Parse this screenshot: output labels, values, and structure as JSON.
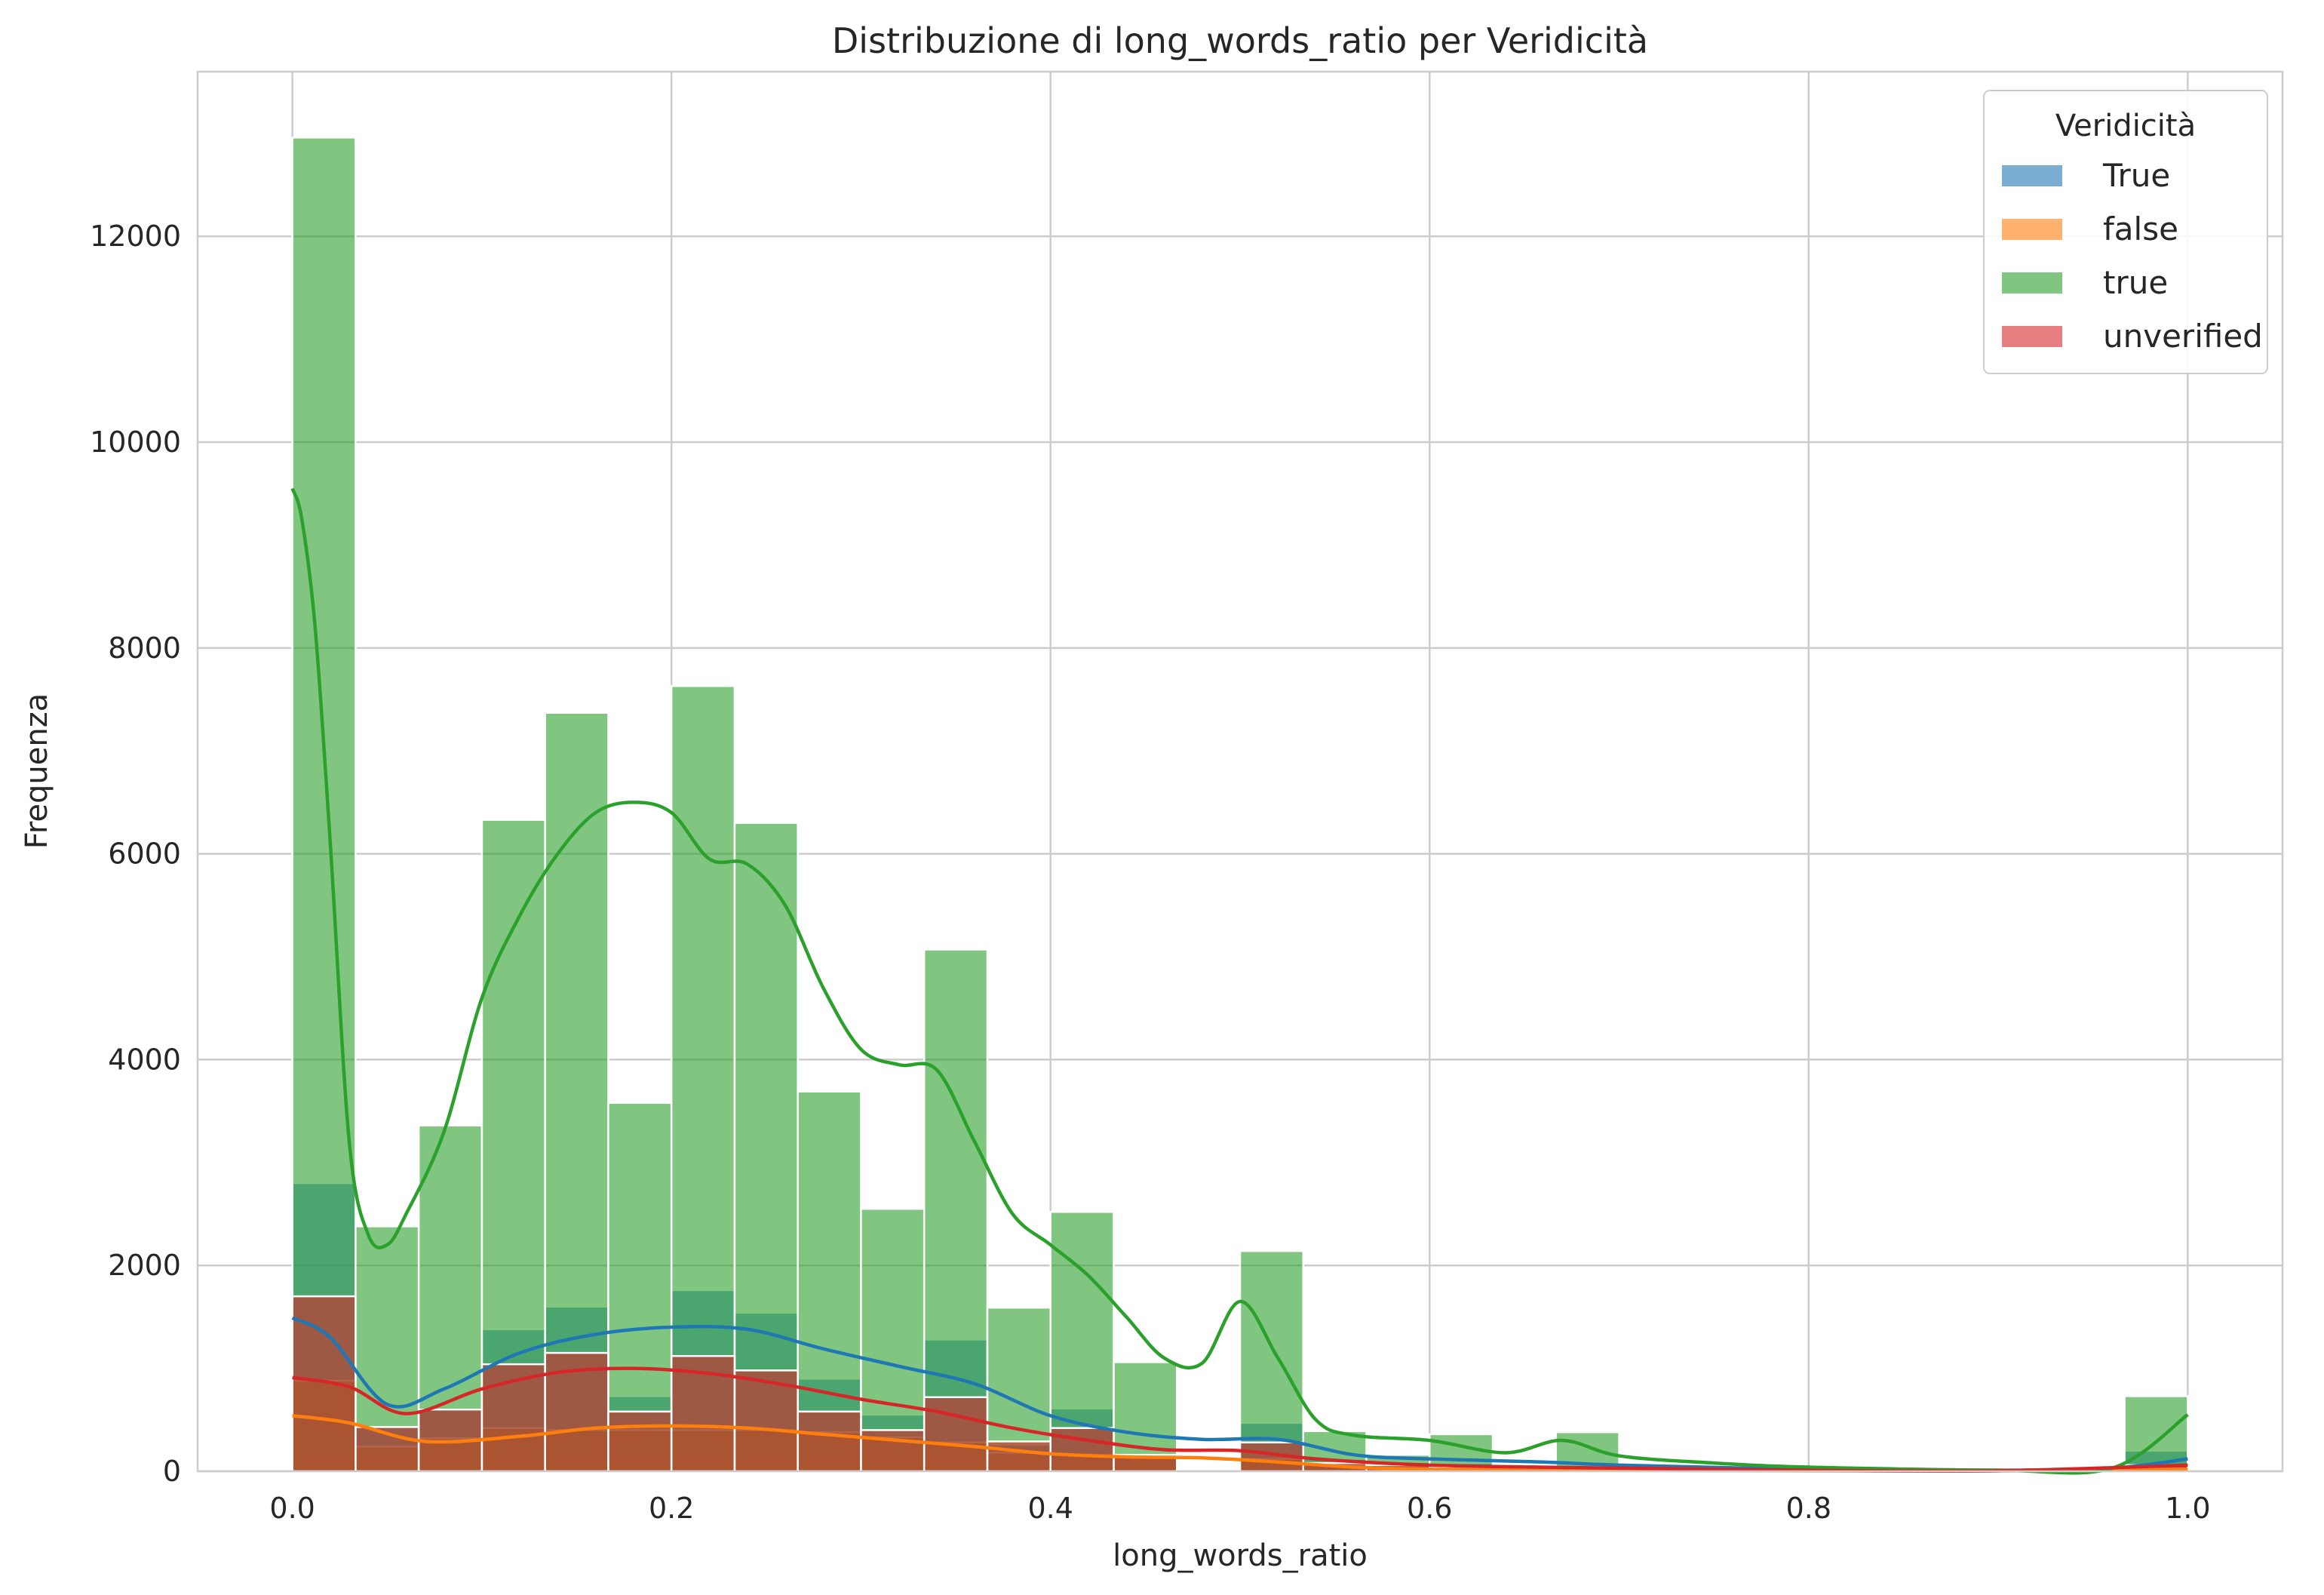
{
  "chart_data": {
    "type": "histogram",
    "title": "Distribuzione di long_words_ratio per Veridicità",
    "xlabel": "long_words_ratio",
    "ylabel": "Frequenza",
    "xlim": [
      -0.05,
      1.05
    ],
    "ylim": [
      0,
      13600
    ],
    "xticks": [
      0.0,
      0.2,
      0.4,
      0.6,
      0.8,
      1.0
    ],
    "xtick_labels": [
      "0.0",
      "0.2",
      "0.4",
      "0.6",
      "0.8",
      "1.0"
    ],
    "yticks": [
      0,
      2000,
      4000,
      6000,
      8000,
      10000,
      12000
    ],
    "ytick_labels": [
      "0",
      "2000",
      "4000",
      "6000",
      "8000",
      "10000",
      "12000"
    ],
    "grid": true,
    "legend": {
      "title": "Veridicità",
      "position": "top-right"
    },
    "bins": {
      "start": 0.0,
      "end": 1.0,
      "count": 30
    },
    "series": [
      {
        "name": "True",
        "color": "#1f77b4",
        "counts": [
          2800,
          430,
          620,
          1380,
          1600,
          730,
          1760,
          1540,
          900,
          550,
          1280,
          260,
          610,
          170,
          0,
          470,
          120,
          90,
          80,
          50,
          0,
          0,
          0,
          0,
          0,
          0,
          0,
          0,
          0,
          200
        ],
        "kde": [
          [
            0.0,
            1490
          ],
          [
            0.02,
            1300
          ],
          [
            0.05,
            650
          ],
          [
            0.08,
            800
          ],
          [
            0.12,
            1150
          ],
          [
            0.16,
            1330
          ],
          [
            0.2,
            1400
          ],
          [
            0.24,
            1380
          ],
          [
            0.28,
            1190
          ],
          [
            0.32,
            1020
          ],
          [
            0.36,
            850
          ],
          [
            0.4,
            540
          ],
          [
            0.44,
            380
          ],
          [
            0.48,
            310
          ],
          [
            0.52,
            310
          ],
          [
            0.56,
            160
          ],
          [
            0.6,
            120
          ],
          [
            0.66,
            90
          ],
          [
            0.7,
            60
          ],
          [
            0.8,
            20
          ],
          [
            0.9,
            10
          ],
          [
            0.96,
            30
          ],
          [
            1.0,
            120
          ]
        ]
      },
      {
        "name": "false",
        "color": "#ff7f0e",
        "counts": [
          880,
          240,
          320,
          420,
          400,
          400,
          400,
          400,
          380,
          330,
          280,
          180,
          160,
          140,
          0,
          120,
          60,
          40,
          20,
          10,
          0,
          0,
          0,
          0,
          0,
          0,
          0,
          0,
          0,
          20
        ],
        "kde": [
          [
            0.0,
            540
          ],
          [
            0.03,
            470
          ],
          [
            0.07,
            290
          ],
          [
            0.12,
            340
          ],
          [
            0.16,
            420
          ],
          [
            0.2,
            440
          ],
          [
            0.24,
            420
          ],
          [
            0.28,
            360
          ],
          [
            0.32,
            300
          ],
          [
            0.36,
            240
          ],
          [
            0.4,
            170
          ],
          [
            0.44,
            140
          ],
          [
            0.48,
            130
          ],
          [
            0.52,
            90
          ],
          [
            0.56,
            40
          ],
          [
            0.6,
            20
          ],
          [
            0.7,
            10
          ],
          [
            0.8,
            5
          ],
          [
            0.9,
            5
          ],
          [
            1.0,
            20
          ]
        ]
      },
      {
        "name": "true",
        "color": "#2ca02c",
        "counts": [
          12960,
          2380,
          3360,
          6330,
          7370,
          3580,
          7630,
          6300,
          3690,
          2550,
          5070,
          1590,
          2520,
          1060,
          0,
          2140,
          390,
          160,
          360,
          0,
          380,
          0,
          0,
          0,
          0,
          0,
          0,
          0,
          0,
          730
        ],
        "kde": [
          [
            0.0,
            9550
          ],
          [
            0.005,
            9250
          ],
          [
            0.012,
            8200
          ],
          [
            0.02,
            6100
          ],
          [
            0.03,
            3200
          ],
          [
            0.04,
            2300
          ],
          [
            0.05,
            2200
          ],
          [
            0.06,
            2500
          ],
          [
            0.08,
            3300
          ],
          [
            0.1,
            4600
          ],
          [
            0.12,
            5400
          ],
          [
            0.14,
            6000
          ],
          [
            0.16,
            6400
          ],
          [
            0.18,
            6500
          ],
          [
            0.2,
            6400
          ],
          [
            0.22,
            5950
          ],
          [
            0.24,
            5900
          ],
          [
            0.26,
            5500
          ],
          [
            0.28,
            4700
          ],
          [
            0.3,
            4100
          ],
          [
            0.32,
            3950
          ],
          [
            0.34,
            3900
          ],
          [
            0.36,
            3200
          ],
          [
            0.38,
            2500
          ],
          [
            0.4,
            2200
          ],
          [
            0.42,
            1900
          ],
          [
            0.44,
            1500
          ],
          [
            0.46,
            1100
          ],
          [
            0.48,
            1050
          ],
          [
            0.5,
            1650
          ],
          [
            0.52,
            1100
          ],
          [
            0.54,
            500
          ],
          [
            0.56,
            350
          ],
          [
            0.6,
            300
          ],
          [
            0.64,
            180
          ],
          [
            0.67,
            300
          ],
          [
            0.7,
            150
          ],
          [
            0.75,
            80
          ],
          [
            0.8,
            40
          ],
          [
            0.9,
            10
          ],
          [
            0.96,
            30
          ],
          [
            1.0,
            550
          ]
        ]
      },
      {
        "name": "unverified",
        "color": "#d62728",
        "counts": [
          1700,
          430,
          600,
          1040,
          1150,
          580,
          1120,
          980,
          580,
          400,
          720,
          290,
          420,
          160,
          0,
          280,
          80,
          60,
          40,
          20,
          0,
          0,
          0,
          0,
          0,
          0,
          0,
          0,
          0,
          60
        ],
        "kde": [
          [
            0.0,
            910
          ],
          [
            0.03,
            820
          ],
          [
            0.06,
            560
          ],
          [
            0.1,
            800
          ],
          [
            0.14,
            960
          ],
          [
            0.18,
            1000
          ],
          [
            0.22,
            950
          ],
          [
            0.26,
            840
          ],
          [
            0.3,
            700
          ],
          [
            0.34,
            580
          ],
          [
            0.38,
            420
          ],
          [
            0.42,
            300
          ],
          [
            0.46,
            210
          ],
          [
            0.5,
            200
          ],
          [
            0.54,
            120
          ],
          [
            0.6,
            60
          ],
          [
            0.7,
            30
          ],
          [
            0.8,
            10
          ],
          [
            0.9,
            5
          ],
          [
            1.0,
            60
          ]
        ]
      }
    ]
  }
}
